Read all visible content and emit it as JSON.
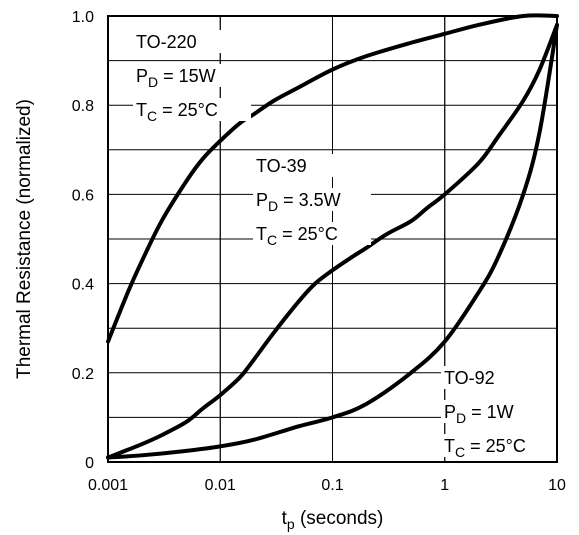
{
  "chart_data": {
    "type": "line",
    "title": "",
    "xlabel": "tp (seconds)",
    "xlabel_main": "t",
    "xlabel_sub": "p",
    "xlabel_rest": " (seconds)",
    "ylabel": "Thermal Resistance (normalized)",
    "xscale": "log",
    "xlim": [
      0.001,
      10
    ],
    "ylim": [
      0,
      1.0
    ],
    "grid": true,
    "x_ticks": [
      0.001,
      0.01,
      0.1,
      1,
      10
    ],
    "x_tick_labels": [
      "0.001",
      "0.01",
      "0.1",
      "1",
      "10"
    ],
    "y_ticks": [
      0,
      0.2,
      0.4,
      0.6,
      0.8,
      1.0
    ],
    "y_tick_labels": [
      "0",
      "0.2",
      "0.4",
      "0.6",
      "0.8",
      "1.0"
    ],
    "series": [
      {
        "name": "TO-220",
        "x": [
          0.001,
          0.0015,
          0.002,
          0.003,
          0.005,
          0.007,
          0.01,
          0.015,
          0.02,
          0.03,
          0.05,
          0.1,
          0.2,
          0.5,
          1,
          2,
          5,
          10
        ],
        "y": [
          0.27,
          0.38,
          0.45,
          0.54,
          0.63,
          0.68,
          0.72,
          0.76,
          0.78,
          0.81,
          0.84,
          0.88,
          0.91,
          0.94,
          0.96,
          0.98,
          1.0,
          1.0
        ]
      },
      {
        "name": "TO-39",
        "x": [
          0.001,
          0.002,
          0.003,
          0.005,
          0.007,
          0.01,
          0.015,
          0.02,
          0.03,
          0.05,
          0.07,
          0.1,
          0.15,
          0.2,
          0.3,
          0.5,
          0.7,
          1,
          2,
          3,
          5,
          7,
          10
        ],
        "y": [
          0.01,
          0.04,
          0.06,
          0.09,
          0.12,
          0.15,
          0.19,
          0.23,
          0.29,
          0.36,
          0.4,
          0.43,
          0.46,
          0.48,
          0.51,
          0.54,
          0.57,
          0.6,
          0.67,
          0.73,
          0.81,
          0.88,
          0.98
        ]
      },
      {
        "name": "TO-92",
        "x": [
          0.001,
          0.002,
          0.005,
          0.01,
          0.02,
          0.05,
          0.1,
          0.2,
          0.5,
          1,
          2,
          3,
          5,
          7,
          10
        ],
        "y": [
          0.01,
          0.015,
          0.025,
          0.035,
          0.05,
          0.08,
          0.1,
          0.13,
          0.2,
          0.27,
          0.38,
          0.46,
          0.6,
          0.74,
          0.98
        ]
      }
    ]
  },
  "annotations": [
    {
      "lines": [
        {
          "main": "TO-220",
          "sub": "",
          "rest": ""
        },
        {
          "main": "P",
          "sub": "D",
          "rest": " = 15W"
        },
        {
          "main": "T",
          "sub": "C",
          "rest": " = 25°C"
        }
      ]
    },
    {
      "lines": [
        {
          "main": "TO-39",
          "sub": "",
          "rest": ""
        },
        {
          "main": "P",
          "sub": "D",
          "rest": " = 3.5W"
        },
        {
          "main": "T",
          "sub": "C",
          "rest": " = 25°C"
        }
      ]
    },
    {
      "lines": [
        {
          "main": "TO-92",
          "sub": "",
          "rest": ""
        },
        {
          "main": "P",
          "sub": "D",
          "rest": " = 1W"
        },
        {
          "main": "T",
          "sub": "C",
          "rest": " = 25°C"
        }
      ]
    }
  ]
}
